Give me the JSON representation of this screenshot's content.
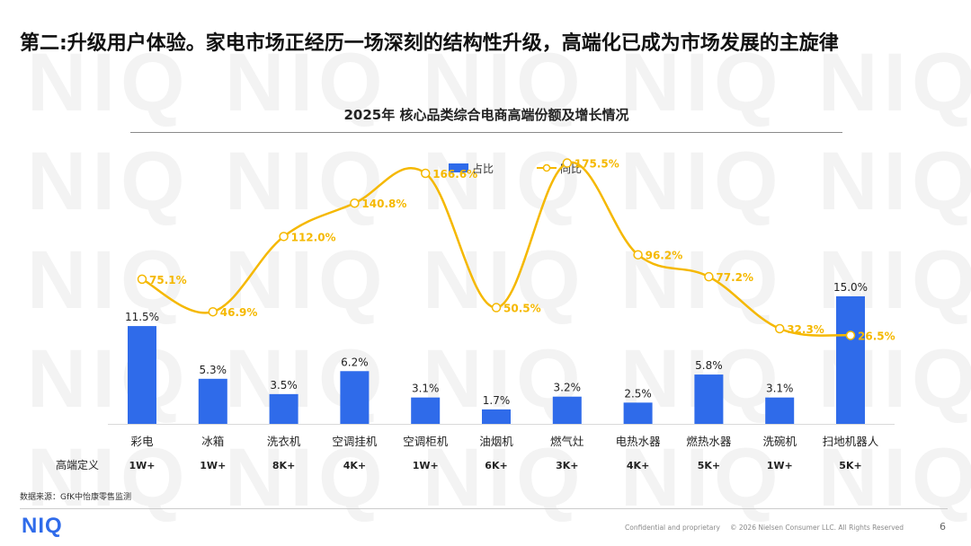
{
  "headline": "第二:升级用户体验。家电市场正经历一场深刻的结构性升级，高端化已成为市场发展的主旋律",
  "watermark_text": "NIQ",
  "colors": {
    "bar": "#2f6bea",
    "line": "#f5b800",
    "accent": "#2f6bea"
  },
  "chart_data": {
    "type": "bar",
    "title": "2025年 核心品类综合电商高端份额及增长情况",
    "categories": [
      "彩电",
      "冰箱",
      "洗衣机",
      "空调挂机",
      "空调柜机",
      "油烟机",
      "燃气灶",
      "电热水器",
      "燃热水器",
      "洗碗机",
      "扫地机器人"
    ],
    "series": [
      {
        "name": "占比",
        "type": "bar",
        "values": [
          11.5,
          5.3,
          3.5,
          6.2,
          3.1,
          1.7,
          3.2,
          2.5,
          5.8,
          3.1,
          15.0
        ],
        "labels": [
          "11.5%",
          "5.3%",
          "3.5%",
          "6.2%",
          "3.1%",
          "1.7%",
          "3.2%",
          "2.5%",
          "5.8%",
          "3.1%",
          "15.0%"
        ]
      },
      {
        "name": "同比",
        "type": "line",
        "values": [
          75.1,
          46.9,
          112.0,
          140.8,
          166.6,
          50.5,
          175.5,
          96.2,
          77.2,
          32.3,
          26.5
        ],
        "labels": [
          "75.1%",
          "46.9%",
          "112.0%",
          "140.8%",
          "166.6%",
          "50.5%",
          "175.5%",
          "96.2%",
          "77.2%",
          "32.3%",
          "26.5%"
        ]
      }
    ],
    "bar_ylim": [
      0,
      34
    ],
    "line_ylim": [
      -50,
      200
    ],
    "legend": [
      "占比",
      "同比"
    ],
    "legend_position": "top-center",
    "row_label": "高端定义",
    "thresholds": [
      "1W+",
      "1W+",
      "8K+",
      "4K+",
      "1W+",
      "6K+",
      "3K+",
      "4K+",
      "5K+",
      "1W+",
      "5K+"
    ]
  },
  "source": "数据来源：GfK中怡康零售监测",
  "confidential": "Confidential and proprietary",
  "copyright": "© 2026 Nielsen Consumer LLC. All Rights Reserved",
  "page_number": "6"
}
